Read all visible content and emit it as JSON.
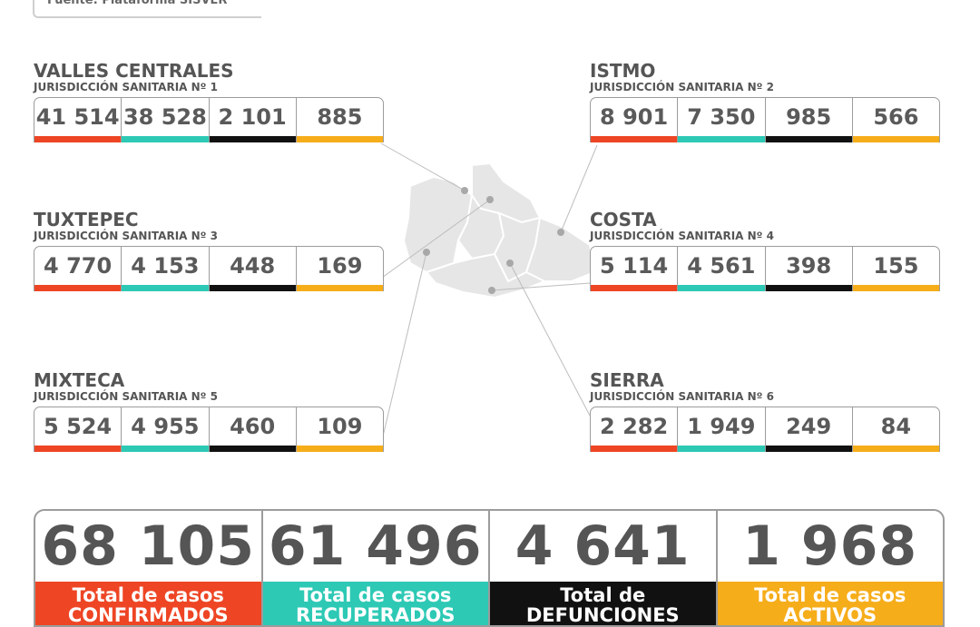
{
  "source": "Fuente: Plataforma SISVER",
  "regions": [
    {
      "name": "VALLES CENTRALES",
      "jurisdiction": "JURISDICCIÓN SANITARIA Nº 1",
      "values": [
        "41 514",
        "38 528",
        "2 101",
        "885"
      ]
    },
    {
      "name": "ISTMO",
      "jurisdiction": "JURISDICCIÓN SANITARIA Nº 2",
      "values": [
        "8 901",
        "7 350",
        "985",
        "566"
      ]
    },
    {
      "name": "TUXTEPEC",
      "jurisdiction": "JURISDICCIÓN SANITARIA Nº 3",
      "values": [
        "4 770",
        "4 153",
        "448",
        "169"
      ]
    },
    {
      "name": "COSTA",
      "jurisdiction": "JURISDICCIÓN SANITARIA Nº 4",
      "values": [
        "5 114",
        "4 561",
        "398",
        "155"
      ]
    },
    {
      "name": "MIXTECA",
      "jurisdiction": "JURISDICCIÓN SANITARIA Nº 5",
      "values": [
        "5 524",
        "4 955",
        "460",
        "109"
      ]
    },
    {
      "name": "SIERRA",
      "jurisdiction": "JURISDICCIÓN SANITARIA Nº 6",
      "values": [
        "2 282",
        "1 949",
        "249",
        "84"
      ]
    }
  ],
  "totals": [
    {
      "value": "68 105",
      "label1": "Total de casos",
      "label2": "CONFIRMADOS"
    },
    {
      "value": "61 496",
      "label1": "Total de casos",
      "label2": "RECUPERADOS"
    },
    {
      "value": "4 641",
      "label1": "Total de",
      "label2": "DEFUNCIONES"
    },
    {
      "value": "1 968",
      "label1": "Total de casos",
      "label2": "ACTIVOS"
    }
  ],
  "colors": {
    "confirmed": "#ee4524",
    "recovered": "#2dc9b5",
    "deaths": "#111111",
    "active": "#f6ad1a",
    "map": "#e6e6e6"
  }
}
